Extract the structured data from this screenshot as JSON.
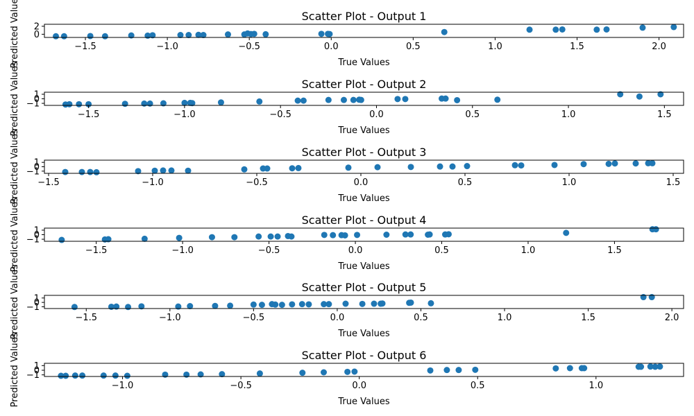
{
  "colors": {
    "point": "#1f77b4"
  },
  "chart_data": [
    {
      "type": "scatter",
      "title": "Scatter Plot - Output 1",
      "xlabel": "True Values",
      "ylabel": "Predicted Values",
      "xlim": [
        -1.75,
        2.15
      ],
      "ylim": [
        -0.8,
        2.5
      ],
      "xticks": [
        -1.5,
        -1.0,
        -0.5,
        0.0,
        0.5,
        1.0,
        1.5,
        2.0
      ],
      "xtick_labels": [
        "−1.5",
        "−1.0",
        "−0.5",
        "0.0",
        "0.5",
        "1.0",
        "1.5",
        "2.0"
      ],
      "yticks": [
        0,
        2
      ],
      "ytick_labels": [
        "0",
        "2"
      ],
      "grid": false,
      "points": [
        {
          "x": -1.68,
          "y": -0.5
        },
        {
          "x": -1.63,
          "y": -0.5
        },
        {
          "x": -1.47,
          "y": -0.45
        },
        {
          "x": -1.38,
          "y": -0.5
        },
        {
          "x": -1.22,
          "y": -0.3
        },
        {
          "x": -1.12,
          "y": -0.35
        },
        {
          "x": -1.09,
          "y": -0.25
        },
        {
          "x": -0.92,
          "y": -0.2
        },
        {
          "x": -0.87,
          "y": -0.2
        },
        {
          "x": -0.81,
          "y": -0.15
        },
        {
          "x": -0.78,
          "y": -0.2
        },
        {
          "x": -0.63,
          "y": -0.05
        },
        {
          "x": -0.53,
          "y": -0.05
        },
        {
          "x": -0.51,
          "y": 0.2
        },
        {
          "x": -0.49,
          "y": 0.05
        },
        {
          "x": -0.47,
          "y": 0.1
        },
        {
          "x": -0.4,
          "y": 0.0
        },
        {
          "x": -0.06,
          "y": 0.1
        },
        {
          "x": -0.02,
          "y": 0.1
        },
        {
          "x": -0.01,
          "y": 0.05
        },
        {
          "x": 0.69,
          "y": 0.55
        },
        {
          "x": 1.21,
          "y": 1.15
        },
        {
          "x": 1.37,
          "y": 1.15
        },
        {
          "x": 1.41,
          "y": 1.2
        },
        {
          "x": 1.62,
          "y": 1.15
        },
        {
          "x": 1.68,
          "y": 1.2
        },
        {
          "x": 1.9,
          "y": 1.65
        },
        {
          "x": 2.09,
          "y": 1.8
        }
      ]
    },
    {
      "type": "scatter",
      "title": "Scatter Plot - Output 2",
      "xlabel": "True Values",
      "ylabel": "Predicted Values",
      "xlim": [
        -1.73,
        1.6
      ],
      "ylim": [
        -1.45,
        1.45
      ],
      "xticks": [
        -1.5,
        -1.0,
        -0.5,
        0.0,
        0.5,
        1.0,
        1.5
      ],
      "xtick_labels": [
        "−1.5",
        "−1.0",
        "−0.5",
        "0.0",
        "0.5",
        "1.0",
        "1.5"
      ],
      "yticks": [
        -1,
        0,
        1
      ],
      "ytick_labels": [
        "−1",
        "0",
        "1"
      ],
      "grid": false,
      "points": [
        {
          "x": -1.62,
          "y": -1.25
        },
        {
          "x": -1.6,
          "y": -1.2
        },
        {
          "x": -1.55,
          "y": -1.2
        },
        {
          "x": -1.5,
          "y": -1.2
        },
        {
          "x": -1.31,
          "y": -1.1
        },
        {
          "x": -1.21,
          "y": -1.05
        },
        {
          "x": -1.18,
          "y": -1.05
        },
        {
          "x": -1.11,
          "y": -1.0
        },
        {
          "x": -1.0,
          "y": -0.9
        },
        {
          "x": -0.97,
          "y": -0.9
        },
        {
          "x": -0.96,
          "y": -0.95
        },
        {
          "x": -0.81,
          "y": -0.8
        },
        {
          "x": -0.61,
          "y": -0.6
        },
        {
          "x": -0.41,
          "y": -0.4
        },
        {
          "x": -0.38,
          "y": -0.4
        },
        {
          "x": -0.25,
          "y": -0.25
        },
        {
          "x": -0.17,
          "y": -0.25
        },
        {
          "x": -0.12,
          "y": -0.25
        },
        {
          "x": -0.09,
          "y": -0.2
        },
        {
          "x": -0.08,
          "y": -0.25
        },
        {
          "x": 0.11,
          "y": -0.05
        },
        {
          "x": 0.15,
          "y": -0.05
        },
        {
          "x": 0.34,
          "y": 0.05
        },
        {
          "x": 0.36,
          "y": 0.05
        },
        {
          "x": 0.42,
          "y": -0.3
        },
        {
          "x": 0.63,
          "y": -0.2
        },
        {
          "x": 1.27,
          "y": 1.0
        },
        {
          "x": 1.37,
          "y": 0.5
        },
        {
          "x": 1.48,
          "y": 1.0
        }
      ]
    },
    {
      "type": "scatter",
      "title": "Scatter Plot - Output 3",
      "xlabel": "True Values",
      "ylabel": "Predicted Values",
      "xlim": [
        -1.52,
        1.55
      ],
      "ylim": [
        -1.5,
        1.5
      ],
      "xticks": [
        -1.5,
        -1.0,
        -0.5,
        0.0,
        0.5,
        1.0,
        1.5
      ],
      "xtick_labels": [
        "−1.5",
        "−1.0",
        "−0.5",
        "0.0",
        "0.5",
        "1.0",
        "1.5"
      ],
      "yticks": [
        -1,
        0,
        1
      ],
      "ytick_labels": [
        "−1",
        "0",
        "1"
      ],
      "grid": false,
      "points": [
        {
          "x": -1.42,
          "y": -1.2
        },
        {
          "x": -1.34,
          "y": -1.2
        },
        {
          "x": -1.3,
          "y": -1.2
        },
        {
          "x": -1.27,
          "y": -1.25
        },
        {
          "x": -1.07,
          "y": -1.0
        },
        {
          "x": -0.99,
          "y": -0.9
        },
        {
          "x": -0.95,
          "y": -0.85
        },
        {
          "x": -0.91,
          "y": -0.85
        },
        {
          "x": -0.83,
          "y": -0.9
        },
        {
          "x": -0.56,
          "y": -0.6
        },
        {
          "x": -0.47,
          "y": -0.4
        },
        {
          "x": -0.45,
          "y": -0.4
        },
        {
          "x": -0.33,
          "y": -0.35
        },
        {
          "x": -0.3,
          "y": -0.3
        },
        {
          "x": -0.06,
          "y": -0.2
        },
        {
          "x": 0.08,
          "y": -0.1
        },
        {
          "x": 0.24,
          "y": -0.05
        },
        {
          "x": 0.38,
          "y": 0.05
        },
        {
          "x": 0.44,
          "y": 0.05
        },
        {
          "x": 0.51,
          "y": 0.15
        },
        {
          "x": 0.74,
          "y": 0.35
        },
        {
          "x": 0.77,
          "y": 0.3
        },
        {
          "x": 0.93,
          "y": 0.4
        },
        {
          "x": 1.07,
          "y": 0.6
        },
        {
          "x": 1.19,
          "y": 0.65
        },
        {
          "x": 1.22,
          "y": 0.75
        },
        {
          "x": 1.32,
          "y": 0.75
        },
        {
          "x": 1.38,
          "y": 0.8
        },
        {
          "x": 1.4,
          "y": 0.8
        }
      ]
    },
    {
      "type": "scatter",
      "title": "Scatter Plot - Output 4",
      "xlabel": "True Values",
      "ylabel": "Predicted Values",
      "xlim": [
        -1.8,
        1.9
      ],
      "ylim": [
        -1.45,
        1.45
      ],
      "xticks": [
        -1.5,
        -1.0,
        -0.5,
        0.0,
        0.5,
        1.0,
        1.5
      ],
      "xtick_labels": [
        "−1.5",
        "−1.0",
        "−0.5",
        "0.0",
        "0.5",
        "1.0",
        "1.5"
      ],
      "yticks": [
        -1,
        0,
        1
      ],
      "ytick_labels": [
        "−1",
        "0",
        "1"
      ],
      "grid": false,
      "points": [
        {
          "x": -1.7,
          "y": -1.15
        },
        {
          "x": -1.45,
          "y": -1.05
        },
        {
          "x": -1.43,
          "y": -1.0
        },
        {
          "x": -1.22,
          "y": -0.9
        },
        {
          "x": -1.02,
          "y": -0.7
        },
        {
          "x": -0.83,
          "y": -0.55
        },
        {
          "x": -0.7,
          "y": -0.55
        },
        {
          "x": -0.56,
          "y": -0.4
        },
        {
          "x": -0.49,
          "y": -0.4
        },
        {
          "x": -0.45,
          "y": -0.4
        },
        {
          "x": -0.39,
          "y": -0.3
        },
        {
          "x": -0.37,
          "y": -0.4
        },
        {
          "x": -0.18,
          "y": -0.05
        },
        {
          "x": -0.13,
          "y": -0.1
        },
        {
          "x": -0.08,
          "y": -0.1
        },
        {
          "x": -0.06,
          "y": -0.15
        },
        {
          "x": 0.01,
          "y": -0.05
        },
        {
          "x": 0.18,
          "y": 0.0
        },
        {
          "x": 0.29,
          "y": 0.05
        },
        {
          "x": 0.32,
          "y": 0.05
        },
        {
          "x": 0.42,
          "y": 0.0
        },
        {
          "x": 0.43,
          "y": 0.05
        },
        {
          "x": 0.52,
          "y": 0.05
        },
        {
          "x": 0.54,
          "y": 0.1
        },
        {
          "x": 1.22,
          "y": 0.4
        },
        {
          "x": 1.72,
          "y": 1.2
        },
        {
          "x": 1.74,
          "y": 1.2
        }
      ]
    },
    {
      "type": "scatter",
      "title": "Scatter Plot - Output 5",
      "xlabel": "True Values",
      "ylabel": "Predicted Values",
      "xlim": [
        -1.75,
        2.07
      ],
      "ylim": [
        -1.4,
        1.6
      ],
      "xticks": [
        -1.5,
        -1.0,
        -0.5,
        0.0,
        0.5,
        1.0,
        1.5,
        2.0
      ],
      "xtick_labels": [
        "−1.5",
        "−1.0",
        "−0.5",
        "0.0",
        "0.5",
        "1.0",
        "1.5",
        "2.0"
      ],
      "yticks": [
        -1,
        0,
        1
      ],
      "ytick_labels": [
        "−1",
        "0",
        "1"
      ],
      "grid": false,
      "points": [
        {
          "x": -1.57,
          "y": -1.05
        },
        {
          "x": -1.35,
          "y": -1.0
        },
        {
          "x": -1.32,
          "y": -0.95
        },
        {
          "x": -1.25,
          "y": -1.05
        },
        {
          "x": -1.17,
          "y": -0.9
        },
        {
          "x": -0.95,
          "y": -0.95
        },
        {
          "x": -0.88,
          "y": -0.85
        },
        {
          "x": -0.73,
          "y": -0.8
        },
        {
          "x": -0.64,
          "y": -0.75
        },
        {
          "x": -0.5,
          "y": -0.5
        },
        {
          "x": -0.45,
          "y": -0.55
        },
        {
          "x": -0.39,
          "y": -0.4
        },
        {
          "x": -0.37,
          "y": -0.5
        },
        {
          "x": -0.33,
          "y": -0.55
        },
        {
          "x": -0.27,
          "y": -0.45
        },
        {
          "x": -0.21,
          "y": -0.4
        },
        {
          "x": -0.17,
          "y": -0.45
        },
        {
          "x": -0.08,
          "y": -0.4
        },
        {
          "x": -0.05,
          "y": -0.4
        },
        {
          "x": 0.05,
          "y": -0.3
        },
        {
          "x": 0.15,
          "y": -0.35
        },
        {
          "x": 0.22,
          "y": -0.3
        },
        {
          "x": 0.26,
          "y": -0.3
        },
        {
          "x": 0.27,
          "y": -0.25
        },
        {
          "x": 0.43,
          "y": -0.1
        },
        {
          "x": 0.44,
          "y": -0.05
        },
        {
          "x": 0.56,
          "y": -0.2
        },
        {
          "x": 1.83,
          "y": 1.2
        },
        {
          "x": 1.88,
          "y": 1.2
        }
      ]
    },
    {
      "type": "scatter",
      "title": "Scatter Plot - Output 6",
      "xlabel": "True Values",
      "ylabel": "Predicted Values",
      "xlim": [
        -1.33,
        1.37
      ],
      "ylim": [
        -1.35,
        1.5
      ],
      "xticks": [
        -1.0,
        -0.5,
        0.0,
        0.5,
        1.0
      ],
      "xtick_labels": [
        "−1.0",
        "−0.5",
        "0.0",
        "0.5",
        "1.0"
      ],
      "yticks": [
        -1,
        0,
        1
      ],
      "ytick_labels": [
        "−1",
        "0",
        "1"
      ],
      "grid": false,
      "points": [
        {
          "x": -1.26,
          "y": -1.2
        },
        {
          "x": -1.24,
          "y": -1.2
        },
        {
          "x": -1.2,
          "y": -1.15
        },
        {
          "x": -1.17,
          "y": -1.15
        },
        {
          "x": -1.08,
          "y": -1.15
        },
        {
          "x": -1.03,
          "y": -1.15
        },
        {
          "x": -0.98,
          "y": -1.2
        },
        {
          "x": -0.82,
          "y": -0.95
        },
        {
          "x": -0.73,
          "y": -0.95
        },
        {
          "x": -0.67,
          "y": -0.9
        },
        {
          "x": -0.58,
          "y": -0.85
        },
        {
          "x": -0.42,
          "y": -0.7
        },
        {
          "x": -0.24,
          "y": -0.55
        },
        {
          "x": -0.15,
          "y": -0.45
        },
        {
          "x": -0.05,
          "y": -0.35
        },
        {
          "x": -0.02,
          "y": -0.3
        },
        {
          "x": 0.3,
          "y": -0.05
        },
        {
          "x": 0.37,
          "y": 0.05
        },
        {
          "x": 0.42,
          "y": 0.05
        },
        {
          "x": 0.49,
          "y": 0.1
        },
        {
          "x": 0.83,
          "y": 0.4
        },
        {
          "x": 0.89,
          "y": 0.45
        },
        {
          "x": 0.94,
          "y": 0.45
        },
        {
          "x": 0.95,
          "y": 0.45
        },
        {
          "x": 1.18,
          "y": 0.75
        },
        {
          "x": 1.19,
          "y": 0.75
        },
        {
          "x": 1.23,
          "y": 0.8
        },
        {
          "x": 1.25,
          "y": 0.75
        },
        {
          "x": 1.27,
          "y": 0.8
        }
      ]
    }
  ]
}
